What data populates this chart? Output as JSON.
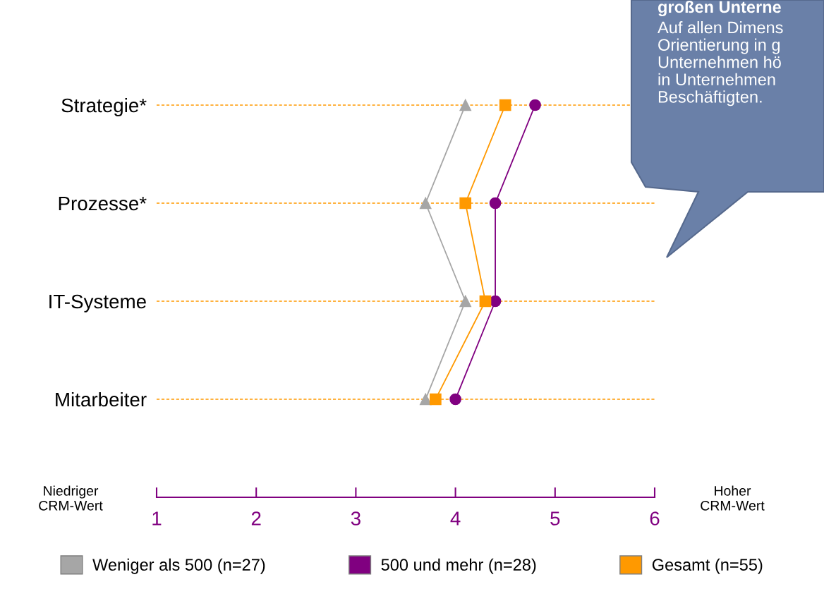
{
  "chart_data": {
    "type": "line",
    "orientation": "horizontal",
    "categories": [
      "Strategie*",
      "Prozesse*",
      "IT-Systeme",
      "Mitarbeiter"
    ],
    "xlim": [
      1,
      6
    ],
    "xticks": [
      1,
      2,
      3,
      4,
      5,
      6
    ],
    "grid": "y",
    "legend": "bottom",
    "series": [
      {
        "name": "Weniger als 500 (n=27)",
        "color": "#a6a6a6",
        "marker": "triangle",
        "values": [
          4.1,
          3.7,
          4.1,
          3.7
        ]
      },
      {
        "name": "500 und mehr (n=28)",
        "color": "#800080",
        "marker": "circle",
        "values": [
          4.8,
          4.4,
          4.4,
          4.0
        ]
      },
      {
        "name": "Gesamt (n=55)",
        "color": "#ff9900",
        "marker": "square",
        "values": [
          4.5,
          4.1,
          4.3,
          3.8
        ]
      }
    ],
    "annotations": [
      "Niedriger\nCRM-Wert",
      "Hoher\nCRM-Wert",
      "großen Unterne",
      "Auf allen Dimens\nOrientierung in g\nUnternehmen hö\nin Unternehmen\nBeschäftigten."
    ]
  }
}
